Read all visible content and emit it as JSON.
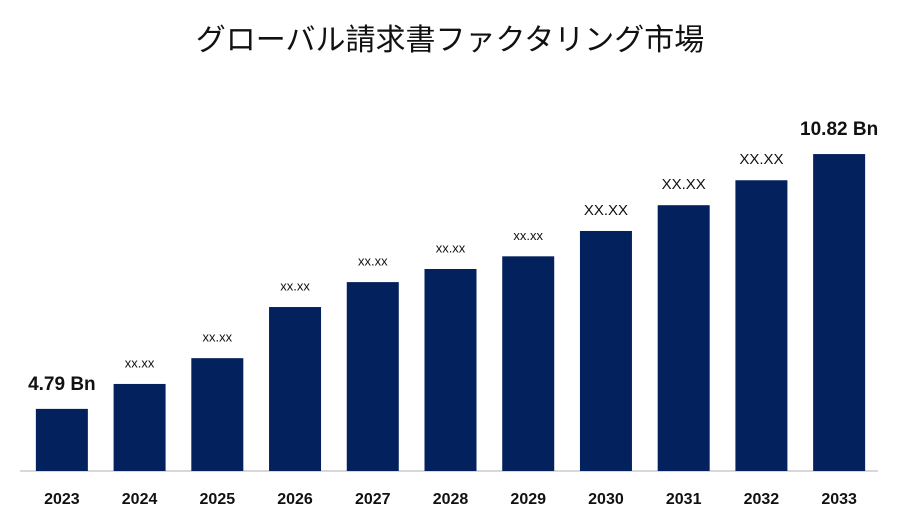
{
  "chart_data": {
    "type": "bar",
    "title": "グローバル請求書ファクタリング市場",
    "categories": [
      "2023",
      "2024",
      "2025",
      "2026",
      "2027",
      "2028",
      "2029",
      "2030",
      "2031",
      "2032",
      "2033"
    ],
    "values": [
      4.79,
      5.38,
      5.99,
      7.2,
      7.79,
      8.1,
      8.4,
      9.0,
      9.61,
      10.2,
      10.82
    ],
    "value_labels": [
      "4.79 Bn",
      "xx.xx",
      "xx.xx",
      "xx.xx",
      "xx.xx",
      "xx.xx",
      "xx.xx",
      "XX.XX",
      "XX.XX",
      "XX.XX",
      "10.82 Bn"
    ],
    "color": "#03215c",
    "ylim": [
      3.32,
      11.2
    ]
  }
}
